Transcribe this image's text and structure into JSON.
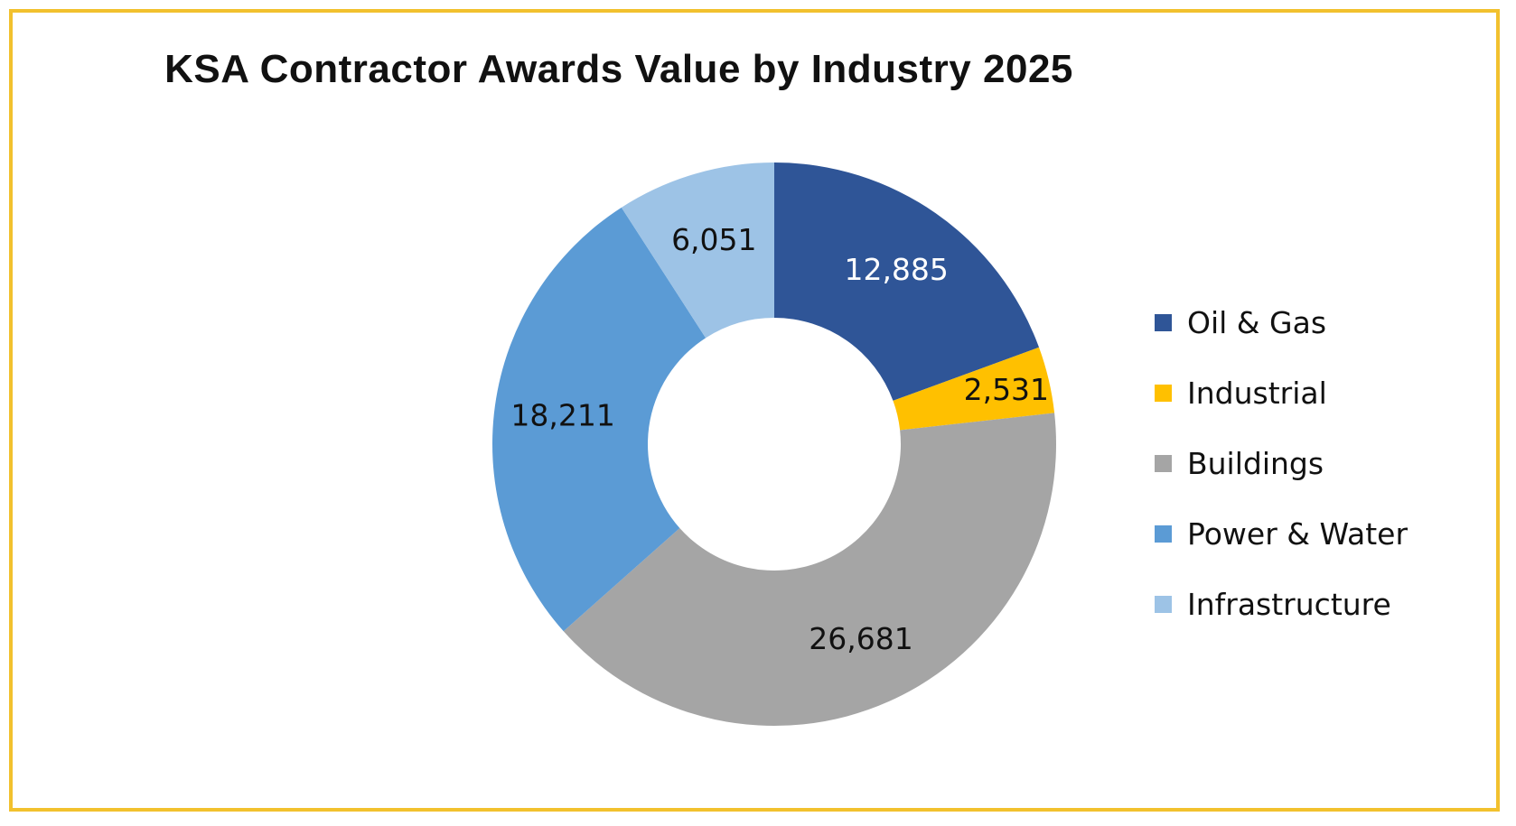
{
  "chart_data": {
    "type": "pie",
    "variant": "donut",
    "title": "KSA Contractor Awards Value by Industry 2025",
    "legend_position": "right",
    "series": [
      {
        "name": "Oil & Gas",
        "value": 12885,
        "label": "12,885",
        "color": "#2f5597",
        "label_color": "#ffffff"
      },
      {
        "name": "Industrial",
        "value": 2531,
        "label": "2,531",
        "color": "#ffc000",
        "label_color": "#111111"
      },
      {
        "name": "Buildings",
        "value": 26681,
        "label": "26,681",
        "color": "#a5a5a5",
        "label_color": "#111111"
      },
      {
        "name": "Power & Water",
        "value": 18211,
        "label": "18,211",
        "color": "#5b9bd5",
        "label_color": "#111111"
      },
      {
        "name": "Infrastructure",
        "value": 6051,
        "label": "6,051",
        "color": "#9dc3e6",
        "label_color": "#111111"
      }
    ]
  },
  "colors": {
    "frame_border": "#f2c12e"
  }
}
